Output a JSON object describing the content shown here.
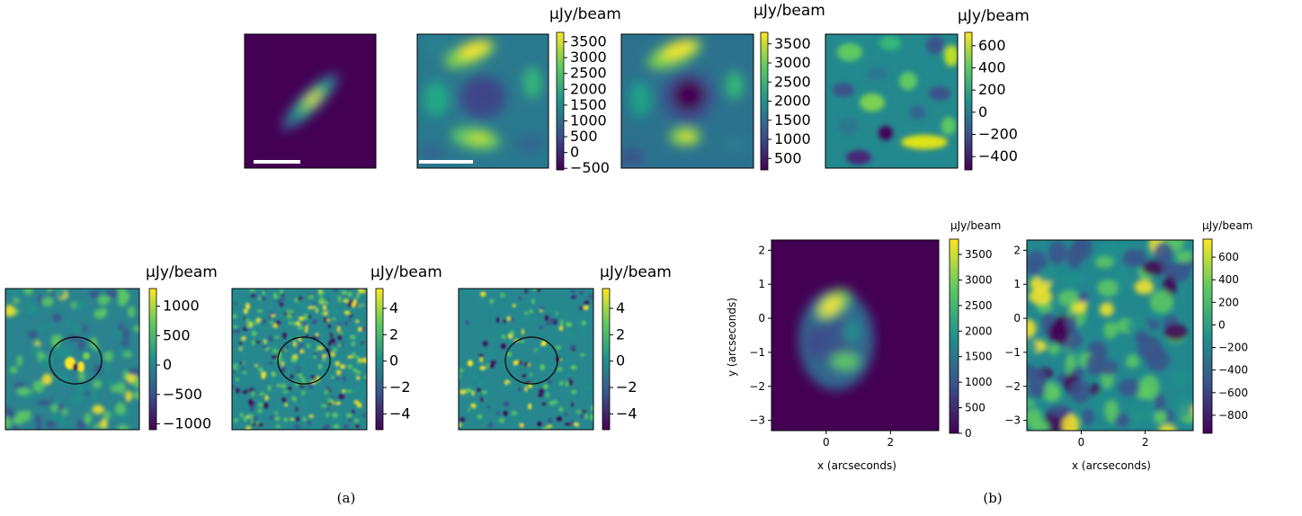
{
  "captions": {
    "a": "(a)",
    "b": "(b)"
  },
  "units": "μJy/beam",
  "axis_labels": {
    "x": "x (arcseconds)",
    "y": "y (arcseconds)"
  },
  "colormap": [
    "#440154",
    "#3b528b",
    "#21918c",
    "#5ec962",
    "#fde725"
  ],
  "chart_data": [
    {
      "type": "heatmap",
      "panel": "a-top-1",
      "description_free": true,
      "colorbar": null,
      "scale_bar": true
    },
    {
      "type": "heatmap",
      "panel": "a-top-2",
      "scale_bar": true,
      "colorbar": {
        "label": "μJy/beam",
        "ticks": [
          3500,
          3000,
          2500,
          2000,
          1500,
          1000,
          500,
          0,
          -500
        ],
        "range": [
          -550,
          3800
        ]
      }
    },
    {
      "type": "heatmap",
      "panel": "a-top-3",
      "colorbar": {
        "label": "μJy/beam",
        "ticks": [
          3500,
          3000,
          2500,
          2000,
          1500,
          1000,
          500
        ],
        "range": [
          200,
          3800
        ]
      }
    },
    {
      "type": "heatmap",
      "panel": "a-top-4",
      "colorbar": {
        "label": "μJy/beam",
        "ticks": [
          600,
          400,
          200,
          0,
          -200,
          -400
        ],
        "range": [
          -520,
          720
        ]
      }
    },
    {
      "type": "heatmap",
      "panel": "a-bottom-1",
      "ellipse": true,
      "colorbar": {
        "label": "μJy/beam",
        "ticks": [
          1000,
          500,
          0,
          -500,
          -1000
        ],
        "range": [
          -1100,
          1300
        ]
      }
    },
    {
      "type": "heatmap",
      "panel": "a-bottom-2",
      "ellipse": true,
      "colorbar": {
        "label": "μJy/beam",
        "ticks": [
          4,
          2,
          0,
          -2,
          -4
        ],
        "range": [
          -5.2,
          5.5
        ]
      }
    },
    {
      "type": "heatmap",
      "panel": "a-bottom-3",
      "ellipse": true,
      "colorbar": {
        "label": "μJy/beam",
        "ticks": [
          4,
          2,
          0,
          -2,
          -4
        ],
        "range": [
          -5.2,
          5.5
        ]
      }
    },
    {
      "type": "heatmap",
      "panel": "b-1",
      "xlabel": "x (arcseconds)",
      "ylabel": "y (arcseconds)",
      "xticks": [
        0,
        2
      ],
      "yticks": [
        2,
        1,
        0,
        -1,
        -2,
        -3
      ],
      "xlim": [
        -1.7,
        3.5
      ],
      "ylim": [
        -3.3,
        2.3
      ],
      "colorbar": {
        "label": "μJy/beam",
        "ticks": [
          3500,
          3000,
          2500,
          2000,
          1500,
          1000,
          500,
          0
        ],
        "range": [
          0,
          3800
        ]
      }
    },
    {
      "type": "heatmap",
      "panel": "b-2",
      "xlabel": "x (arcseconds)",
      "xticks": [
        0,
        2
      ],
      "yticks": [
        2,
        1,
        0,
        -1,
        -2,
        -3
      ],
      "xlim": [
        -1.7,
        3.5
      ],
      "ylim": [
        -3.3,
        2.3
      ],
      "colorbar": {
        "label": "μJy/beam",
        "ticks": [
          600,
          400,
          200,
          0,
          -200,
          -400,
          -600,
          -800
        ],
        "range": [
          -960,
          760
        ]
      }
    }
  ],
  "tick_text": {
    "t2": [
      "3500",
      "3000",
      "2500",
      "2000",
      "1500",
      "1000",
      "500",
      "0",
      "−500"
    ],
    "t3": [
      "3500",
      "3000",
      "2500",
      "2000",
      "1500",
      "1000",
      "500"
    ],
    "t4": [
      "600",
      "400",
      "200",
      "0",
      "−200",
      "−400"
    ],
    "b1": [
      "1000",
      "500",
      "0",
      "−500",
      "−1000"
    ],
    "b2": [
      "4",
      "2",
      "0",
      "−2",
      "−4"
    ],
    "b3": [
      "4",
      "2",
      "0",
      "−2",
      "−4"
    ],
    "c1": [
      "3500",
      "3000",
      "2500",
      "2000",
      "1500",
      "1000",
      "500",
      "0"
    ],
    "c2": [
      "600",
      "400",
      "200",
      "0",
      "−200",
      "−400",
      "−600",
      "−800"
    ],
    "xticks": [
      "0",
      "2"
    ],
    "yticks": [
      "2",
      "1",
      "0",
      "−1",
      "−2",
      "−3"
    ]
  }
}
